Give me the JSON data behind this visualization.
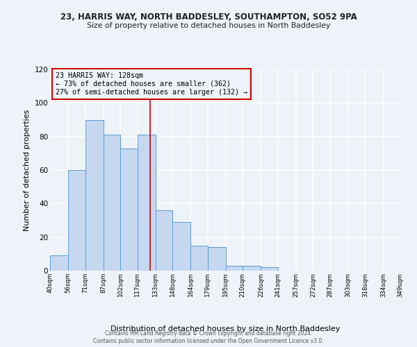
{
  "title1": "23, HARRIS WAY, NORTH BADDESLEY, SOUTHAMPTON, SO52 9PA",
  "title2": "Size of property relative to detached houses in North Baddesley",
  "xlabel": "Distribution of detached houses by size in North Baddesley",
  "ylabel": "Number of detached properties",
  "annotation_line1": "23 HARRIS WAY: 128sqm",
  "annotation_line2": "← 73% of detached houses are smaller (362)",
  "annotation_line3": "27% of semi-detached houses are larger (132) →",
  "footer1": "Contains HM Land Registry data © Crown copyright and database right 2024.",
  "footer2": "Contains public sector information licensed under the Open Government Licence v3.0.",
  "bar_edges": [
    40,
    56,
    71,
    87,
    102,
    117,
    133,
    148,
    164,
    179,
    195,
    210,
    226,
    241,
    257,
    272,
    287,
    303,
    318,
    334,
    349
  ],
  "bar_values": [
    9,
    60,
    90,
    81,
    73,
    81,
    36,
    29,
    15,
    14,
    3,
    3,
    2,
    0,
    0,
    0,
    0,
    0,
    0,
    0
  ],
  "property_size": 128,
  "bar_color": "#c5d8f0",
  "bar_edge_color": "#5b9bd5",
  "vline_color": "#cc0000",
  "annotation_box_edge_color": "#cc0000",
  "background_color": "#eef2f9",
  "grid_color": "#ffffff",
  "ylim": [
    0,
    120
  ],
  "yticks": [
    0,
    20,
    40,
    60,
    80,
    100,
    120
  ]
}
